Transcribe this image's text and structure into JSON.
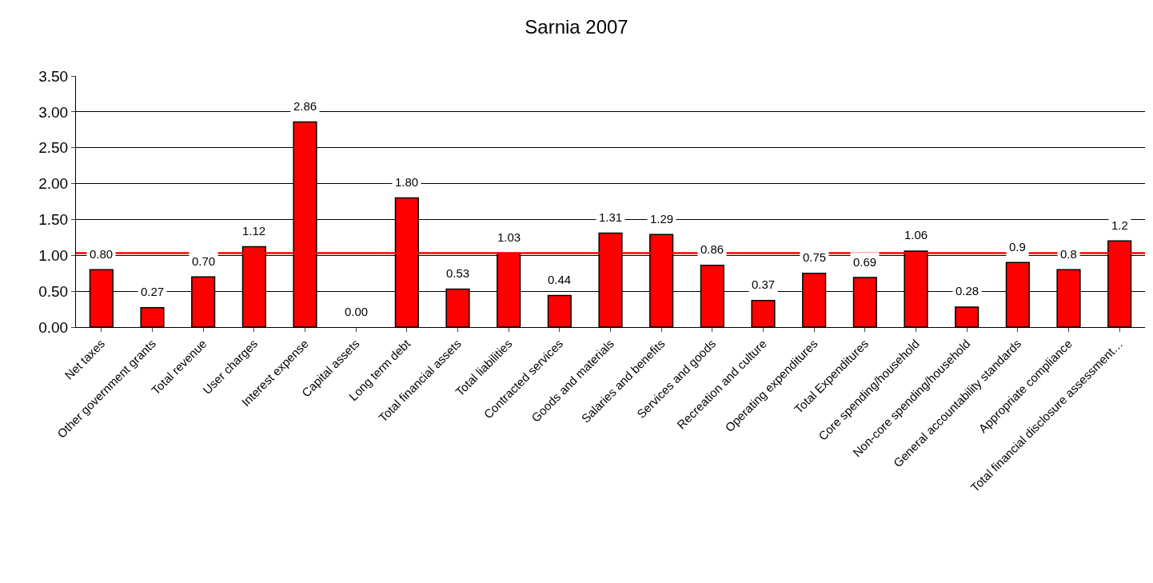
{
  "chart_data": {
    "type": "bar",
    "title": "Sarnia 2007",
    "categories": [
      "Net taxes",
      "Other government grants",
      "Total revenue",
      "User charges",
      "Interest expense",
      "Capital assets",
      "Long term debt",
      "Total financial assets",
      "Total liabilities",
      "Contracted services",
      "Goods and materials",
      "Salaries and benefits",
      "Services and goods",
      "Recreation and culture",
      "Operating expenditures",
      "Total Expenditures",
      "Core spending/household",
      "Non-core spending/household",
      "General accountability standards",
      "Appropriate compliance",
      "Total financial disclosure assessment…"
    ],
    "values": [
      0.8,
      0.27,
      0.7,
      1.12,
      2.86,
      0.0,
      1.8,
      0.53,
      1.03,
      0.44,
      1.31,
      1.29,
      0.86,
      0.37,
      0.75,
      0.69,
      1.06,
      0.28,
      0.9,
      0.8,
      1.2
    ],
    "value_labels": [
      "0.80",
      "0.27",
      "0.70",
      "1.12",
      "2.86",
      "0.00",
      "1.80",
      "0.53",
      "1.03",
      "0.44",
      "1.31",
      "1.29",
      "0.86",
      "0.37",
      "0.75",
      "0.69",
      "1.06",
      "0.28",
      "0.9",
      "0.8",
      "1.2"
    ],
    "color": "#ff0000",
    "ylim": [
      0,
      3.5
    ],
    "yticks": [
      {
        "value": 0,
        "label": "0.00"
      },
      {
        "value": 0.5,
        "label": "0.50"
      },
      {
        "value": 1,
        "label": "1.00"
      },
      {
        "value": 1.5,
        "label": "1.50"
      },
      {
        "value": 2,
        "label": "2.00"
      },
      {
        "value": 2.5,
        "label": "2.50"
      },
      {
        "value": 3,
        "label": "3.00"
      },
      {
        "value": 3.5,
        "label": "3.50"
      }
    ],
    "grid": "y",
    "ref_lines": [
      {
        "axis": "y",
        "value": 1.03,
        "color": "#ff0000"
      }
    ]
  }
}
